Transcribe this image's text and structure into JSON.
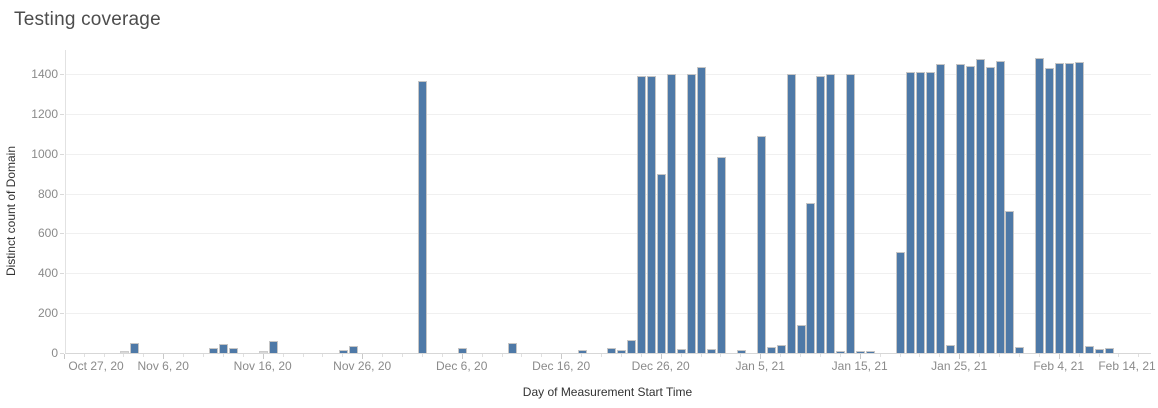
{
  "chart_data": {
    "type": "bar",
    "title": "Testing coverage",
    "x_axis": {
      "title": "Day of Measurement Start Time",
      "tick_labels": [
        "Oct 27, 20",
        "Nov 6, 20",
        "Nov 16, 20",
        "Nov 26, 20",
        "Dec 6, 20",
        "Dec 16, 20",
        "Dec 26, 20",
        "Jan 5, 21",
        "Jan 15, 21",
        "Jan 25, 21",
        "Feb 4, 21",
        "Feb 14, 21"
      ],
      "tick_step_days": 10,
      "minor_tick_step_days": 2,
      "span_days": 110
    },
    "y_axis": {
      "title": "Distinct count of Domain",
      "tick_values": [
        0,
        200,
        400,
        600,
        800,
        1000,
        1200,
        1400
      ],
      "max": 1520
    },
    "bars": [
      {
        "date": "Nov 2, 20",
        "day": 6,
        "value": 5,
        "muted": true
      },
      {
        "date": "Nov 3, 20",
        "day": 7,
        "value": 50
      },
      {
        "date": "Nov 11, 20",
        "day": 15,
        "value": 25
      },
      {
        "date": "Nov 12, 20",
        "day": 16,
        "value": 45
      },
      {
        "date": "Nov 13, 20",
        "day": 17,
        "value": 25
      },
      {
        "date": "Nov 16, 20",
        "day": 20,
        "value": 5,
        "muted": true
      },
      {
        "date": "Nov 17, 20",
        "day": 21,
        "value": 60
      },
      {
        "date": "Nov 24, 20",
        "day": 28,
        "value": 15
      },
      {
        "date": "Nov 25, 20",
        "day": 29,
        "value": 35
      },
      {
        "date": "Dec 2, 20",
        "day": 36,
        "value": 1365
      },
      {
        "date": "Dec 6, 20",
        "day": 40,
        "value": 25
      },
      {
        "date": "Dec 11, 20",
        "day": 45,
        "value": 50
      },
      {
        "date": "Dec 18, 20",
        "day": 52,
        "value": 15
      },
      {
        "date": "Dec 21, 20",
        "day": 55,
        "value": 25
      },
      {
        "date": "Dec 22, 20",
        "day": 56,
        "value": 15
      },
      {
        "date": "Dec 23, 20",
        "day": 57,
        "value": 65
      },
      {
        "date": "Dec 24, 20",
        "day": 58,
        "value": 1390
      },
      {
        "date": "Dec 25, 20",
        "day": 59,
        "value": 1390
      },
      {
        "date": "Dec 26, 20",
        "day": 60,
        "value": 900
      },
      {
        "date": "Dec 27, 20",
        "day": 61,
        "value": 1400
      },
      {
        "date": "Dec 28, 20",
        "day": 62,
        "value": 20
      },
      {
        "date": "Dec 29, 20",
        "day": 63,
        "value": 1400
      },
      {
        "date": "Dec 30, 20",
        "day": 64,
        "value": 1435
      },
      {
        "date": "Dec 31, 20",
        "day": 65,
        "value": 20
      },
      {
        "date": "Jan 1, 21",
        "day": 66,
        "value": 985
      },
      {
        "date": "Jan 3, 21",
        "day": 68,
        "value": 15
      },
      {
        "date": "Jan 5, 21",
        "day": 70,
        "value": 1090
      },
      {
        "date": "Jan 6, 21",
        "day": 71,
        "value": 30
      },
      {
        "date": "Jan 7, 21",
        "day": 72,
        "value": 40
      },
      {
        "date": "Jan 8, 21",
        "day": 73,
        "value": 1400
      },
      {
        "date": "Jan 9, 21",
        "day": 74,
        "value": 140
      },
      {
        "date": "Jan 10, 21",
        "day": 75,
        "value": 750
      },
      {
        "date": "Jan 11, 21",
        "day": 76,
        "value": 1390
      },
      {
        "date": "Jan 12, 21",
        "day": 77,
        "value": 1400
      },
      {
        "date": "Jan 13, 21",
        "day": 78,
        "value": 12
      },
      {
        "date": "Jan 14, 21",
        "day": 79,
        "value": 1400
      },
      {
        "date": "Jan 15, 21",
        "day": 80,
        "value": 12
      },
      {
        "date": "Jan 16, 21",
        "day": 81,
        "value": 10
      },
      {
        "date": "Jan 19, 21",
        "day": 84,
        "value": 505
      },
      {
        "date": "Jan 20, 21",
        "day": 85,
        "value": 1410
      },
      {
        "date": "Jan 21, 21",
        "day": 86,
        "value": 1410
      },
      {
        "date": "Jan 22, 21",
        "day": 87,
        "value": 1410
      },
      {
        "date": "Jan 23, 21",
        "day": 88,
        "value": 1450
      },
      {
        "date": "Jan 24, 21",
        "day": 89,
        "value": 40
      },
      {
        "date": "Jan 25, 21",
        "day": 90,
        "value": 1450
      },
      {
        "date": "Jan 26, 21",
        "day": 91,
        "value": 1440
      },
      {
        "date": "Jan 27, 21",
        "day": 92,
        "value": 1475
      },
      {
        "date": "Jan 28, 21",
        "day": 93,
        "value": 1435
      },
      {
        "date": "Jan 29, 21",
        "day": 94,
        "value": 1465
      },
      {
        "date": "Jan 30, 21",
        "day": 95,
        "value": 710
      },
      {
        "date": "Jan 31, 21",
        "day": 96,
        "value": 30
      },
      {
        "date": "Feb 2, 21",
        "day": 98,
        "value": 1480
      },
      {
        "date": "Feb 3, 21",
        "day": 99,
        "value": 1430
      },
      {
        "date": "Feb 4, 21",
        "day": 100,
        "value": 1455
      },
      {
        "date": "Feb 5, 21",
        "day": 101,
        "value": 1455
      },
      {
        "date": "Feb 6, 21",
        "day": 102,
        "value": 1460
      },
      {
        "date": "Feb 7, 21",
        "day": 103,
        "value": 35
      },
      {
        "date": "Feb 8, 21",
        "day": 104,
        "value": 20
      },
      {
        "date": "Feb 9, 21",
        "day": 105,
        "value": 25
      }
    ]
  },
  "colors": {
    "bar": "#4e79a7",
    "muted_bar": "#d8d8d8",
    "grid": "#f0f0f0",
    "axis_line": "#d7d7d7",
    "tick_label": "#8a8a8a",
    "axis_title": "#333333",
    "title": "#4d4d4d",
    "background": "#ffffff"
  }
}
